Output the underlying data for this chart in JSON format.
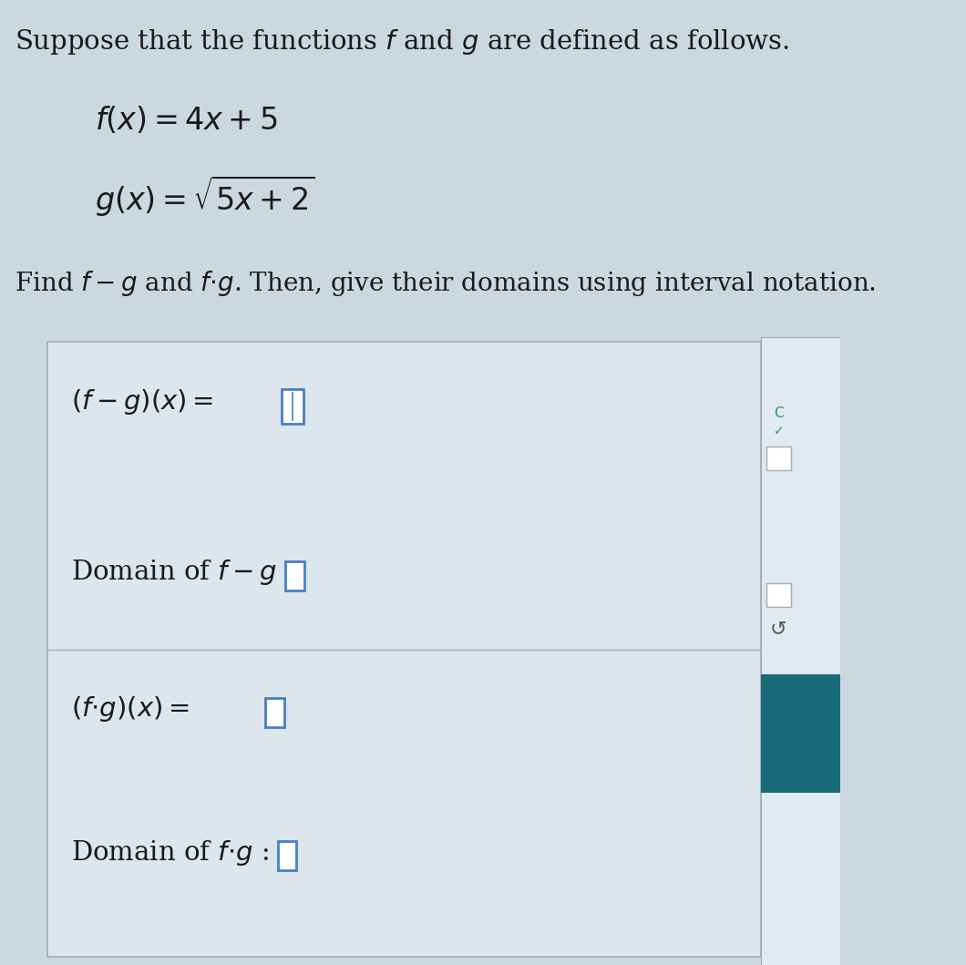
{
  "bg_color": "#ccd8e0",
  "box_bg_color": "#dce6ed",
  "box_border_color": "#a0adb5",
  "text_color": "#1a1a1a",
  "blue_input_color": "#4a7fc1",
  "blue_btn_color": "#1a6b7a",
  "right_panel_bg": "#e0eaf0",
  "title_text": "Suppose that the functions $f$ and $g$ are defined as follows.",
  "f_formula": "$f(x) = 4x+5$",
  "g_formula": "$g(x) = \\sqrt{5x+2}$",
  "find_text": "Find $f-g$ and $f{\\cdot}g$. Then, give their domains using interval notation.",
  "fg_minus_label": "$(f-g)(x) =$",
  "domain_fg_minus_label": "Domain of $f-g$ :",
  "fg_dot_label": "$(f{\\cdot}g)(x) =$",
  "domain_fg_dot_label": "Domain of $f{\\cdot}g$ :",
  "title_fontsize": 21,
  "formula_fontsize": 24,
  "find_fontsize": 20,
  "label_fontsize": 21
}
